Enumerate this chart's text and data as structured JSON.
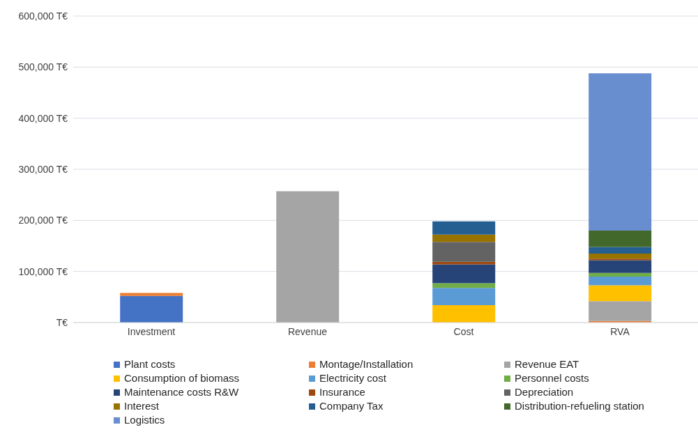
{
  "chart_data": {
    "type": "bar",
    "stacked": true,
    "categories": [
      "Investment",
      "Revenue",
      "Cost",
      "RVA"
    ],
    "series": [
      {
        "name": "Plant costs",
        "color": "#4472c4",
        "values": [
          52000,
          null,
          null,
          null
        ]
      },
      {
        "name": "Montage/Installation",
        "color": "#ed7d31",
        "values": [
          6000,
          null,
          null,
          3000
        ]
      },
      {
        "name": "Revenue EAT",
        "color": "#a5a5a5",
        "values": [
          null,
          257000,
          null,
          39000
        ]
      },
      {
        "name": "Consumption of biomass",
        "color": "#ffc000",
        "values": [
          null,
          null,
          34000,
          31000
        ]
      },
      {
        "name": "Electricity cost",
        "color": "#5b9bd5",
        "values": [
          null,
          null,
          34000,
          17000
        ]
      },
      {
        "name": "Personnel costs",
        "color": "#70ad47",
        "values": [
          null,
          null,
          9000,
          7000
        ]
      },
      {
        "name": "Maintenance costs R&W",
        "color": "#264478",
        "values": [
          null,
          null,
          37000,
          25000
        ]
      },
      {
        "name": "Insurance",
        "color": "#9e480e",
        "values": [
          null,
          null,
          5000,
          3000
        ]
      },
      {
        "name": "Depreciation",
        "color": "#636363",
        "values": [
          null,
          null,
          39000,
          null
        ]
      },
      {
        "name": "Interest",
        "color": "#997300",
        "values": [
          null,
          null,
          14000,
          10000
        ]
      },
      {
        "name": "Company Tax",
        "color": "#255e91",
        "values": [
          null,
          null,
          26000,
          13000
        ]
      },
      {
        "name": "Distribution-refueling station",
        "color": "#43682b",
        "values": [
          null,
          null,
          null,
          32000
        ]
      },
      {
        "name": "Logistics",
        "color": "#698ed0",
        "values": [
          null,
          null,
          null,
          308000
        ]
      }
    ],
    "ylim": [
      0,
      600000
    ],
    "yticks": [
      {
        "value": 0,
        "label": "T€"
      },
      {
        "value": 100000,
        "label": "100,000 T€"
      },
      {
        "value": 200000,
        "label": "200,000 T€"
      },
      {
        "value": 300000,
        "label": "300,000 T€"
      },
      {
        "value": 400000,
        "label": "400,000 T€"
      },
      {
        "value": 500000,
        "label": "500,000 T€"
      },
      {
        "value": 600000,
        "label": "600,000 T€"
      }
    ],
    "grid": "y",
    "legend": "bottom"
  }
}
